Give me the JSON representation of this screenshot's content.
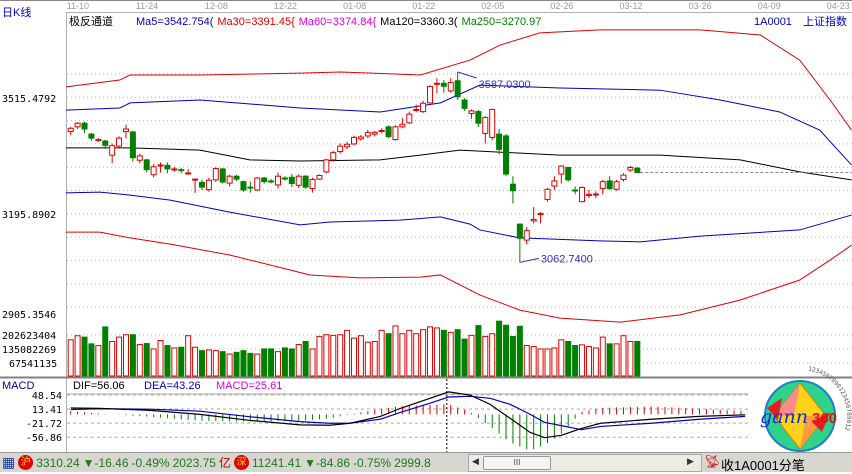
{
  "header": {
    "period_label": "日K线",
    "indicator_name": "极反通道",
    "ma_labels": [
      {
        "text": "Ma5=3542.754(",
        "color": "#0000c0"
      },
      {
        "text": "Ma30=3391.45{",
        "color": "#e00000"
      },
      {
        "text": "Ma60=3374.84{",
        "color": "#e000e0"
      },
      {
        "text": "Ma120=3360.3(",
        "color": "#000000"
      },
      {
        "text": "Ma250=3270.97",
        "color": "#008000"
      }
    ],
    "symbol": "1A0001",
    "symbol_name": "上证指数"
  },
  "chart_data": {
    "type": "candlestick",
    "date_ticks": [
      "11-10",
      "11-24",
      "12-08",
      "12-22",
      "01-08",
      "01-22",
      "02-05",
      "02-26",
      "03-12",
      "03-26",
      "04-09",
      "04-23"
    ],
    "price_ticks": [
      "3515.4792",
      "3195.8902",
      "2905.3546"
    ],
    "volume_ticks": [
      "202623404",
      "135082269",
      "67541135"
    ],
    "candles_ohlc": [
      [
        3423,
        3432,
        3436,
        3413
      ],
      [
        3436,
        3446,
        3449,
        3430
      ],
      [
        3446,
        3430,
        3450,
        3418
      ],
      [
        3416,
        3405,
        3420,
        3398
      ],
      [
        3398,
        3401,
        3405,
        3395
      ],
      [
        3397,
        3385,
        3400,
        3375
      ],
      [
        3358,
        3384,
        3390,
        3336
      ],
      [
        3383,
        3405,
        3410,
        3376
      ],
      [
        3423,
        3430,
        3442,
        3404
      ],
      [
        3422,
        3351,
        3425,
        3340
      ],
      [
        3344,
        3356,
        3362,
        3336
      ],
      [
        3345,
        3318,
        3348,
        3311
      ],
      [
        3304,
        3326,
        3334,
        3297
      ],
      [
        3330,
        3331,
        3338,
        3310
      ],
      [
        3330,
        3320,
        3338,
        3308
      ],
      [
        3318,
        3320,
        3326,
        3312
      ],
      [
        3318,
        3316,
        3323,
        3308
      ],
      [
        3308,
        3309,
        3320,
        3304
      ],
      [
        3291,
        3292,
        3294,
        3254
      ],
      [
        3283,
        3270,
        3290,
        3262
      ],
      [
        3263,
        3289,
        3296,
        3257
      ],
      [
        3290,
        3321,
        3324,
        3284
      ],
      [
        3320,
        3284,
        3323,
        3280
      ],
      [
        3281,
        3300,
        3304,
        3272
      ],
      [
        3300,
        3292,
        3304,
        3287
      ],
      [
        3285,
        3262,
        3288,
        3257
      ],
      [
        3270,
        3268,
        3285,
        3255
      ],
      [
        3262,
        3295,
        3298,
        3259
      ],
      [
        3295,
        3285,
        3298,
        3280
      ],
      [
        3287,
        3286,
        3292,
        3280
      ],
      [
        3276,
        3300,
        3310,
        3266
      ],
      [
        3295,
        3294,
        3300,
        3288
      ],
      [
        3297,
        3280,
        3306,
        3270
      ],
      [
        3275,
        3300,
        3305,
        3268
      ],
      [
        3300,
        3270,
        3303,
        3265
      ],
      [
        3266,
        3291,
        3296,
        3255
      ],
      [
        3292,
        3302,
        3305,
        3290
      ],
      [
        3312,
        3345,
        3348,
        3308
      ],
      [
        3345,
        3365,
        3370,
        3340
      ],
      [
        3368,
        3383,
        3390,
        3362
      ],
      [
        3381,
        3388,
        3395,
        3375
      ],
      [
        3389,
        3407,
        3412,
        3385
      ],
      [
        3403,
        3408,
        3414,
        3398
      ],
      [
        3411,
        3420,
        3428,
        3405
      ],
      [
        3416,
        3421,
        3425,
        3410
      ],
      [
        3423,
        3426,
        3432,
        3418
      ],
      [
        3436,
        3409,
        3440,
        3405
      ],
      [
        3401,
        3436,
        3440,
        3398
      ],
      [
        3436,
        3443,
        3460,
        3432
      ],
      [
        3447,
        3471,
        3478,
        3444
      ],
      [
        3482,
        3484,
        3497,
        3476
      ],
      [
        3478,
        3501,
        3508,
        3474
      ],
      [
        3502,
        3547,
        3550,
        3500
      ],
      [
        3555,
        3556,
        3570,
        3528
      ],
      [
        3556,
        3548,
        3565,
        3530
      ],
      [
        3535,
        3558,
        3570,
        3530
      ],
      [
        3563,
        3519,
        3587.03,
        3510
      ],
      [
        3510,
        3487,
        3515,
        3480
      ],
      [
        3473,
        3480,
        3484,
        3458
      ],
      [
        3478,
        3446,
        3483,
        3436
      ],
      [
        3418,
        3462,
        3465,
        3390
      ],
      [
        3407,
        3484,
        3486,
        3400
      ],
      [
        3416,
        3374,
        3430,
        3360
      ],
      [
        3411,
        3306,
        3416,
        3300
      ],
      [
        3278,
        3260,
        3300,
        3225
      ],
      [
        3168,
        3129,
        3170,
        3062.74
      ],
      [
        3124,
        3150,
        3160,
        3112
      ],
      [
        3177,
        3181,
        3215,
        3170
      ],
      [
        3195,
        3197,
        3201,
        3170
      ],
      [
        3236,
        3264,
        3268,
        3230
      ],
      [
        3273,
        3287,
        3300,
        3262
      ],
      [
        3306,
        3328,
        3330,
        3280
      ],
      [
        3324,
        3290,
        3326,
        3285
      ],
      [
        3262,
        3260,
        3272,
        3250
      ],
      [
        3230,
        3269,
        3272,
        3228
      ],
      [
        3247,
        3250,
        3262,
        3240
      ],
      [
        3249,
        3251,
        3258,
        3240
      ],
      [
        3266,
        3285,
        3290,
        3250
      ],
      [
        3287,
        3266,
        3300,
        3262
      ],
      [
        3264,
        3285,
        3290,
        3260
      ],
      [
        3291,
        3303,
        3308,
        3285
      ],
      [
        3317,
        3324,
        3328,
        3312
      ],
      [
        3322,
        3310.24,
        3326,
        3308
      ]
    ],
    "volumes": [
      178500000,
      198500000,
      191800000,
      158500000,
      150100000,
      241900000,
      170100000,
      191800000,
      203500000,
      203500000,
      155100000,
      160100000,
      133400000,
      175100000,
      150100000,
      138400000,
      141800000,
      198500000,
      141800000,
      125100000,
      128400000,
      125100000,
      120100000,
      108400000,
      116800000,
      125100000,
      111800000,
      108400000,
      133400000,
      133400000,
      120100000,
      138400000,
      133400000,
      155100000,
      170100000,
      133400000,
      195200000,
      203500000,
      200200000,
      203500000,
      225200000,
      186800000,
      198500000,
      166800000,
      170100000,
      225200000,
      208500000,
      246900000,
      208500000,
      225200000,
      208500000,
      228500000,
      241900000,
      236900000,
      225200000,
      215200000,
      228500000,
      181800000,
      200200000,
      248500000,
      195200000,
      208500000,
      270200000,
      250200000,
      195200000,
      245200000,
      150100000,
      145100000,
      133400000,
      133400000,
      138400000,
      178500000,
      170100000,
      150100000,
      153500000,
      145100000,
      138400000,
      191800000,
      158500000,
      158500000,
      198500000,
      170100000,
      170100000
    ],
    "channel_lines": [
      {
        "color": "#e00000",
        "points": [
          [
            -0.7,
            3546
          ],
          [
            7.1,
            3565
          ],
          [
            8.6,
            3579
          ],
          [
            18.7,
            3579
          ],
          [
            33.2,
            3584
          ],
          [
            39,
            3587
          ],
          [
            50.6,
            3579
          ],
          [
            57.8,
            3620
          ],
          [
            62.1,
            3661
          ],
          [
            67.9,
            3695
          ],
          [
            76.6,
            3703
          ],
          [
            91.1,
            3703
          ],
          [
            99.8,
            3689
          ],
          [
            105.5,
            3620
          ],
          [
            109.9,
            3510
          ],
          [
            113,
            3427
          ]
        ]
      },
      {
        "color": "#0000c0",
        "points": [
          [
            -0.7,
            3482
          ],
          [
            7.1,
            3488
          ],
          [
            8.6,
            3502
          ],
          [
            18.7,
            3510
          ],
          [
            33.2,
            3488
          ],
          [
            44.8,
            3477
          ],
          [
            53.5,
            3502
          ],
          [
            59.2,
            3551
          ],
          [
            70.8,
            3543
          ],
          [
            85.3,
            3537
          ],
          [
            94,
            3510
          ],
          [
            102.6,
            3477
          ],
          [
            108.4,
            3427
          ],
          [
            113,
            3331
          ]
        ]
      },
      {
        "color": "#000000",
        "points": [
          [
            -0.7,
            3378
          ],
          [
            8.6,
            3378
          ],
          [
            18.7,
            3372
          ],
          [
            25.9,
            3345
          ],
          [
            33.2,
            3342
          ],
          [
            44.8,
            3345
          ],
          [
            50.6,
            3358
          ],
          [
            56.3,
            3372
          ],
          [
            70.8,
            3358
          ],
          [
            85.3,
            3358
          ],
          [
            96.9,
            3345
          ],
          [
            105.5,
            3312
          ],
          [
            113,
            3290
          ]
        ]
      },
      {
        "color": "#0000c0",
        "points": [
          [
            -0.7,
            3254
          ],
          [
            4.2,
            3256
          ],
          [
            8.6,
            3248
          ],
          [
            14.4,
            3234
          ],
          [
            23,
            3201
          ],
          [
            33.2,
            3166
          ],
          [
            37.5,
            3174
          ],
          [
            47.7,
            3179
          ],
          [
            53.5,
            3188
          ],
          [
            57.8,
            3168
          ],
          [
            59.2,
            3152
          ],
          [
            65,
            3130
          ],
          [
            76.6,
            3122
          ],
          [
            82.4,
            3119
          ],
          [
            91.1,
            3135
          ],
          [
            105.5,
            3152
          ],
          [
            113,
            3193
          ]
        ]
      },
      {
        "color": "#e00000",
        "points": [
          [
            -0.7,
            3146
          ],
          [
            4.2,
            3146
          ],
          [
            8.6,
            3130
          ],
          [
            14.4,
            3113
          ],
          [
            23,
            3083
          ],
          [
            31.7,
            3042
          ],
          [
            34.6,
            3028
          ],
          [
            41.9,
            3020
          ],
          [
            50.6,
            3022
          ],
          [
            53.5,
            3028
          ],
          [
            59.2,
            2973
          ],
          [
            65,
            2931
          ],
          [
            70.8,
            2909
          ],
          [
            79.5,
            2898
          ],
          [
            88.2,
            2918
          ],
          [
            96.9,
            2959
          ],
          [
            105.5,
            3014
          ],
          [
            109.9,
            3069
          ],
          [
            113,
            3110
          ]
        ]
      }
    ],
    "annotations": [
      {
        "label": "3587.0300",
        "candle": 56,
        "price": 3587.03,
        "kind": "high"
      },
      {
        "label": "3062.7400",
        "candle": 65,
        "price": 3062.74,
        "kind": "low"
      }
    ],
    "last_close_line": 3310.24,
    "colors": {
      "up": "#e00000",
      "down": "#008000",
      "grid": "#a0a0a0"
    }
  },
  "macd": {
    "title": "MACD",
    "dif_label": "DIF=56.06",
    "dea_label": "DEA=43.26",
    "macd_label": "MACD=25.61",
    "ticks": [
      "48.54",
      "13.41",
      "-21.72",
      "-56.86"
    ],
    "tick_values": [
      48.54,
      13.41,
      -21.72,
      -56.86
    ],
    "cursor_index": 54,
    "last_index": 97,
    "dif_points": [
      [
        0,
        16
      ],
      [
        4.2,
        15
      ],
      [
        11.5,
        10
      ],
      [
        18.7,
        0
      ],
      [
        26,
        -15
      ],
      [
        33.2,
        -26
      ],
      [
        37.5,
        -27
      ],
      [
        40.4,
        -22
      ],
      [
        44.8,
        -5
      ],
      [
        47.7,
        15
      ],
      [
        52,
        40
      ],
      [
        54.7,
        56.06
      ],
      [
        57.8,
        48
      ],
      [
        60.7,
        25
      ],
      [
        63.6,
        -10
      ],
      [
        66.5,
        -45
      ],
      [
        68.6,
        -58
      ],
      [
        71,
        -52
      ],
      [
        73.9,
        -35
      ],
      [
        76.7,
        -22
      ],
      [
        84,
        -12
      ],
      [
        91,
        -5
      ],
      [
        97.6,
        -1
      ]
    ],
    "dea_points": [
      [
        0,
        12
      ],
      [
        4.2,
        14
      ],
      [
        11.5,
        13
      ],
      [
        18.7,
        8
      ],
      [
        26,
        -6
      ],
      [
        33.2,
        -18
      ],
      [
        37.5,
        -22
      ],
      [
        40.4,
        -22
      ],
      [
        44.8,
        -12
      ],
      [
        47.7,
        5
      ],
      [
        52,
        28
      ],
      [
        54.7,
        43.26
      ],
      [
        57.8,
        45
      ],
      [
        60.7,
        40
      ],
      [
        63.6,
        25
      ],
      [
        66.5,
        0
      ],
      [
        68.6,
        -20
      ],
      [
        71,
        -28
      ],
      [
        73.9,
        -38
      ],
      [
        76.7,
        -30
      ],
      [
        84,
        -22
      ],
      [
        91,
        -12
      ],
      [
        97.6,
        -5
      ]
    ]
  },
  "status_bar": {
    "sh_badge": "沪",
    "sh_index": "3310.24",
    "sh_change": "▼-16.46",
    "sh_pct": "-0.49%",
    "sh_amount": "2023.75",
    "amount_unit": "亿",
    "sz_badge": "深",
    "sz_index": "11241.41",
    "sz_change": "▼-84.86",
    "sz_pct": "-0.75%",
    "sz_amount": "2999.8",
    "scroll_thumb_grip": "III",
    "connection_text": "收1A0001分笔"
  },
  "logo": {
    "text_main": "gann",
    "text_num": "360",
    "ring_digits": "1234567890123456789012"
  }
}
